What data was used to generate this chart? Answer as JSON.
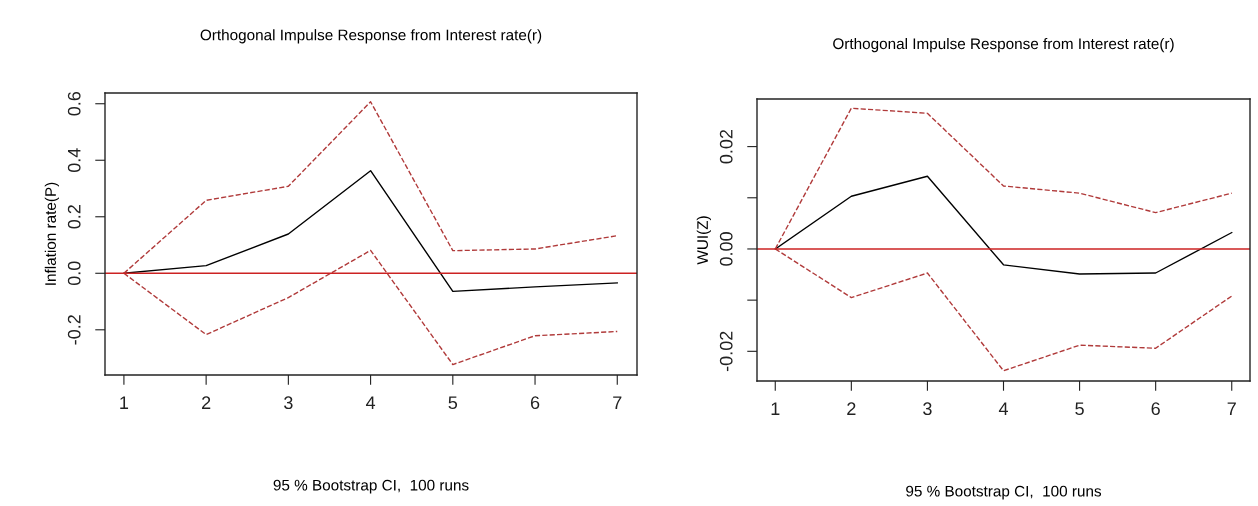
{
  "chart_data": [
    {
      "type": "line",
      "title": "Orthogonal Impulse Response from Interest rate(r)",
      "xlabel": "95 % Bootstrap CI,  100 runs",
      "ylabel": "Inflation rate(P)",
      "x": [
        1,
        2,
        3,
        4,
        5,
        6,
        7
      ],
      "xlim": [
        0.77,
        7.24
      ],
      "xticks": [
        1,
        2,
        3,
        4,
        5,
        6,
        7
      ],
      "ylim": [
        -0.36,
        0.638
      ],
      "yticks": [
        -0.2,
        {
          "value": 0,
          "label": "0.0"
        },
        0.2,
        0.4,
        0.6
      ],
      "grid": false,
      "legend": false,
      "series": [
        {
          "color": "#000000",
          "line_style": "solid",
          "values": [
            0,
            0.027,
            0.139,
            0.363,
            -0.064,
            -0.048,
            -0.034
          ]
        },
        {
          "color": "#b03a3a",
          "line_style": "dashed",
          "values": [
            0,
            0.258,
            0.308,
            0.607,
            0.08,
            0.086,
            0.133
          ]
        },
        {
          "color": "#b03a3a",
          "line_style": "dashed",
          "values": [
            0,
            -0.217,
            -0.086,
            0.081,
            -0.323,
            -0.221,
            -0.206
          ]
        }
      ],
      "ref_lines": [
        {
          "axis": "y",
          "value": 0,
          "color": "#cc2222"
        }
      ]
    },
    {
      "type": "line",
      "title": "Orthogonal Impulse Response from Interest rate(r)",
      "xlabel": "95 % Bootstrap CI,  100 runs",
      "ylabel": "WUI(Z)",
      "x": [
        1,
        2,
        3,
        4,
        5,
        6,
        7
      ],
      "xlim": [
        0.76,
        7.24
      ],
      "xticks": [
        1,
        2,
        3,
        4,
        5,
        6,
        7
      ],
      "ylim": [
        -0.0258,
        0.0293
      ],
      "yticks": [
        -0.02,
        {
          "value": -0.01,
          "label": null
        },
        {
          "value": 0,
          "label": "0.00"
        },
        {
          "value": 0.01,
          "label": null
        },
        0.02
      ],
      "grid": false,
      "legend": false,
      "series": [
        {
          "color": "#000000",
          "line_style": "solid",
          "values": [
            0,
            0.0103,
            0.0142,
            -0.0031,
            -0.0049,
            -0.0047,
            0.0032
          ]
        },
        {
          "color": "#b03a3a",
          "line_style": "dashed",
          "values": [
            0,
            0.0275,
            0.0265,
            0.0123,
            0.0109,
            0.0071,
            0.0109
          ]
        },
        {
          "color": "#b03a3a",
          "line_style": "dashed",
          "values": [
            0,
            -0.0095,
            -0.0047,
            -0.0238,
            -0.0188,
            -0.0194,
            -0.0092
          ]
        }
      ],
      "ref_lines": [
        {
          "axis": "y",
          "value": 0,
          "color": "#cc2222"
        }
      ]
    }
  ]
}
